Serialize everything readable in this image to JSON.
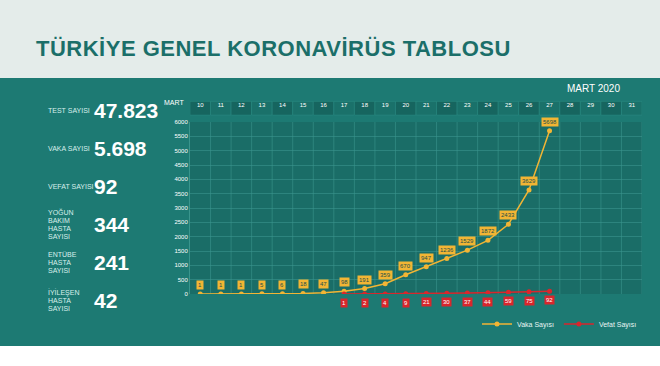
{
  "header": {
    "title": "TÜRKİYE GENEL KORONAVİRÜS TABLOSU",
    "period": "MART 2020"
  },
  "stats": [
    {
      "label": "TEST SAYISI",
      "value": "47.823"
    },
    {
      "label": "VAKA SAYISI",
      "value": "5.698"
    },
    {
      "label": "VEFAT SAYISI",
      "value": "92"
    },
    {
      "label": "YOĞUN BAKIM HASTA SAYISI",
      "value": "344"
    },
    {
      "label": "ENTÜBE HASTA SAYISI",
      "value": "241"
    },
    {
      "label": "İYİLEŞEN HASTA SAYISI",
      "value": "42"
    }
  ],
  "chart_data": {
    "type": "line",
    "xlabel": "MART",
    "categories": [
      "10",
      "11",
      "12",
      "13",
      "14",
      "15",
      "16",
      "17",
      "18",
      "19",
      "20",
      "21",
      "22",
      "23",
      "24",
      "25",
      "26",
      "27",
      "28",
      "29",
      "30",
      "31"
    ],
    "series": [
      {
        "name": "Vaka Sayısı",
        "color": "#f2b534",
        "values": [
          1,
          1,
          1,
          5,
          6,
          18,
          47,
          98,
          191,
          359,
          670,
          947,
          1236,
          1529,
          1872,
          2433,
          3629,
          5698,
          null,
          null,
          null,
          null
        ]
      },
      {
        "name": "Vefat Sayısı",
        "color": "#d9262c",
        "values": [
          null,
          null,
          null,
          null,
          null,
          null,
          null,
          1,
          2,
          4,
          9,
          21,
          30,
          37,
          44,
          59,
          75,
          92,
          null,
          null,
          null,
          null
        ]
      }
    ],
    "ylim": [
      0,
      6000
    ],
    "yticks": [
      0,
      500,
      1000,
      1500,
      2000,
      2500,
      3000,
      3500,
      4000,
      4500,
      5000,
      5500,
      6000
    ],
    "grid": true,
    "legend": "lower right",
    "data_labels": true,
    "marker": "circle"
  }
}
